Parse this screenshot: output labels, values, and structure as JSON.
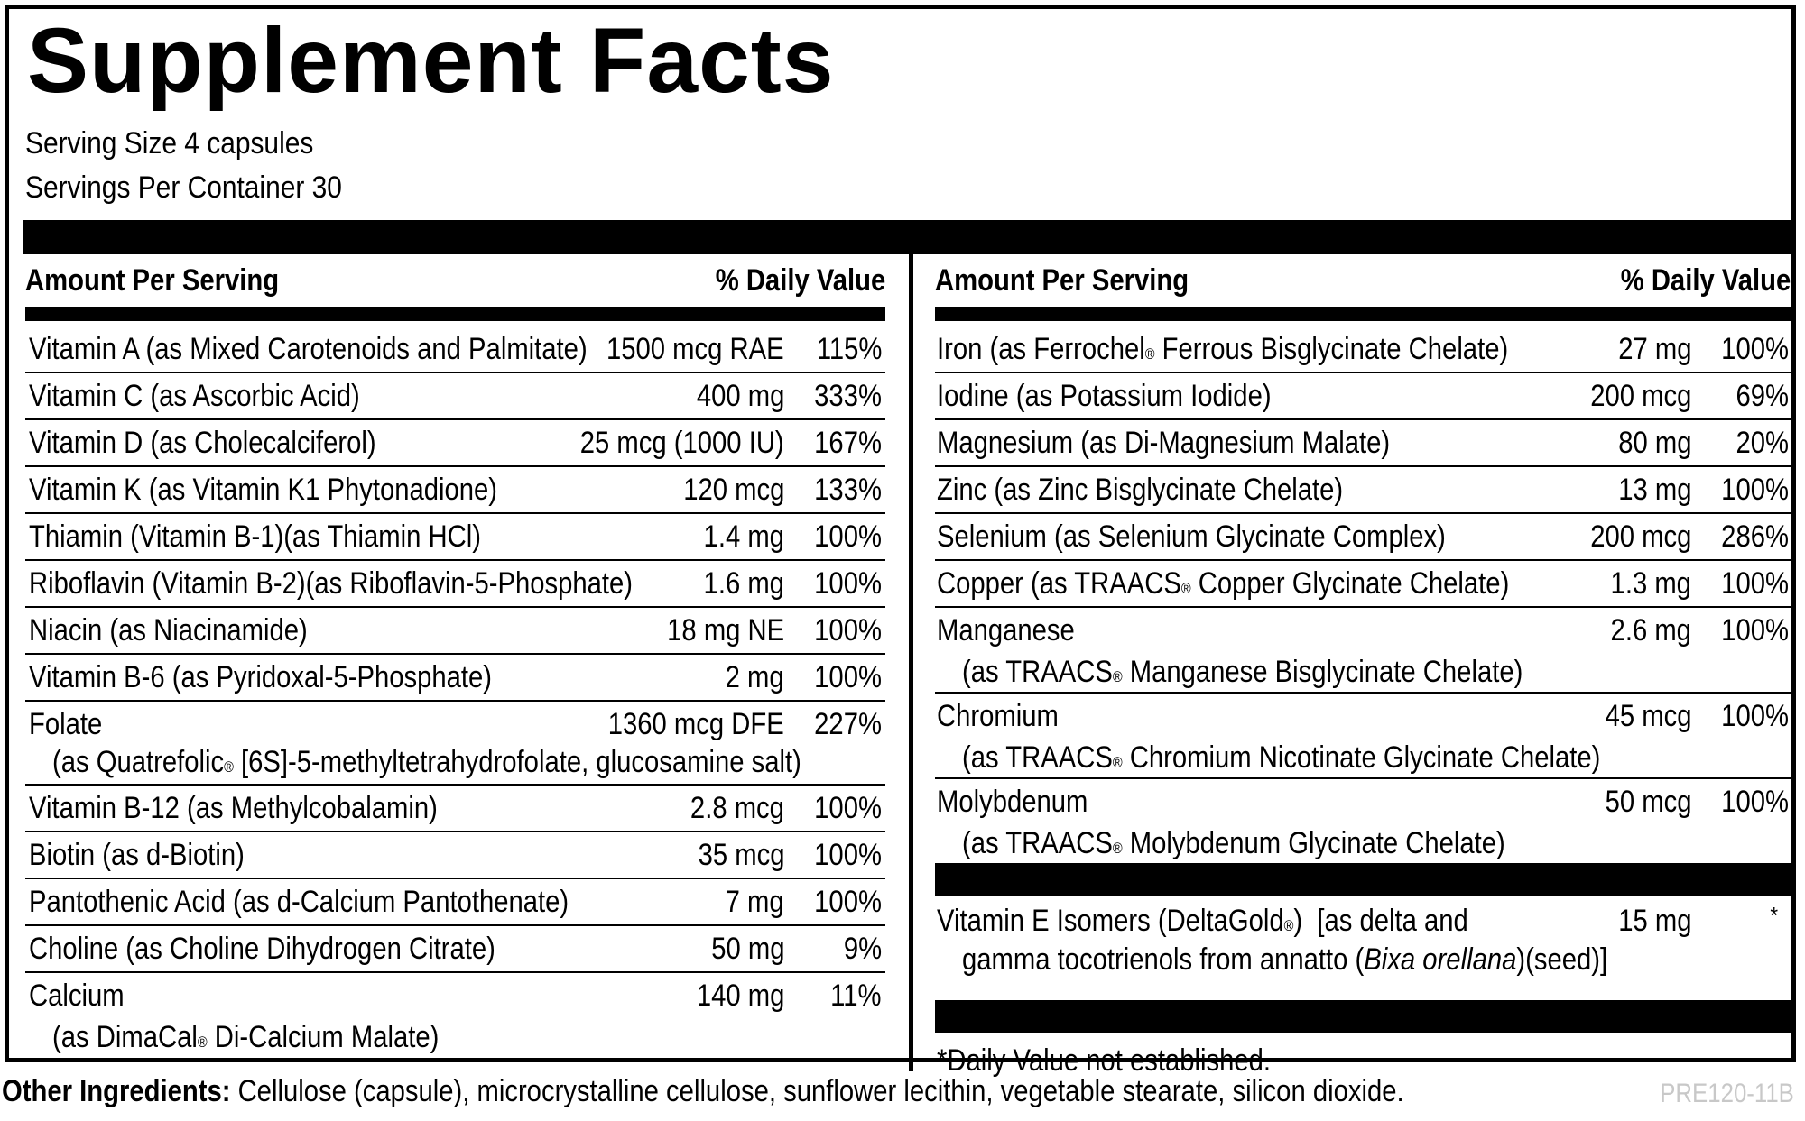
{
  "title": "Supplement Facts",
  "serving_size": "Serving Size 4 capsules",
  "servings_per_container": "Servings Per Container 30",
  "column_headers": {
    "amount": "Amount Per Serving",
    "daily_value": "% Daily Value"
  },
  "left_nutrients": [
    {
      "name": "Vitamin A (as Mixed Carotenoids and Palmitate)",
      "amount": "1500 mcg RAE",
      "dv": "115%"
    },
    {
      "name": "Vitamin C (as Ascorbic Acid)",
      "amount": "400 mg",
      "dv": "333%"
    },
    {
      "name": "Vitamin D (as Cholecalciferol)",
      "amount": "25 mcg (1000 IU)",
      "dv": "167%"
    },
    {
      "name": "Vitamin K (as Vitamin K1 Phytonadione)",
      "amount": "120 mcg",
      "dv": "133%"
    },
    {
      "name": "Thiamin (Vitamin B-1)(as Thiamin HCl)",
      "amount": "1.4 mg",
      "dv": "100%"
    },
    {
      "name": "Riboflavin (Vitamin B-2)(as Riboflavin-5-Phosphate)",
      "amount": "1.6 mg",
      "dv": "100%"
    },
    {
      "name": "Niacin (as Niacinamide)",
      "amount": "18 mg NE",
      "dv": "100%"
    },
    {
      "name": "Vitamin B-6 (as Pyridoxal-5-Phosphate)",
      "amount": "2 mg",
      "dv": "100%"
    },
    {
      "name": "Folate",
      "sub_pre": "(as Quatrefolic",
      "sub_mark": "®",
      "sub_post": " [6S]-5-methyltetrahydrofolate, glucosamine salt)",
      "amount": "1360 mcg DFE",
      "dv": "227%"
    },
    {
      "name": "Vitamin B-12 (as Methylcobalamin)",
      "amount": "2.8 mcg",
      "dv": "100%"
    },
    {
      "name": "Biotin (as d-Biotin)",
      "amount": "35 mcg",
      "dv": "100%"
    },
    {
      "name": "Pantothenic Acid (as d-Calcium Pantothenate)",
      "amount": "7 mg",
      "dv": "100%"
    },
    {
      "name": "Choline (as Choline Dihydrogen Citrate)",
      "amount": "50 mg",
      "dv": "9%"
    },
    {
      "name": "Calcium",
      "sub_pre": "(as DimaCal",
      "sub_mark": "®",
      "sub_post": " Di-Calcium Malate)",
      "amount": "140 mg",
      "dv": "11%"
    }
  ],
  "right_nutrients": [
    {
      "name_pre": "Iron (as Ferrochel",
      "name_mark": "®",
      "name_post": " Ferrous Bisglycinate Chelate)",
      "amount": "27 mg",
      "dv": "100%"
    },
    {
      "name": "Iodine (as Potassium Iodide)",
      "amount": "200 mcg",
      "dv": "69%"
    },
    {
      "name": "Magnesium (as Di-Magnesium Malate)",
      "amount": "80 mg",
      "dv": "20%"
    },
    {
      "name": "Zinc (as Zinc Bisglycinate Chelate)",
      "amount": "13 mg",
      "dv": "100%"
    },
    {
      "name": "Selenium (as Selenium Glycinate Complex)",
      "amount": "200 mcg",
      "dv": "286%"
    },
    {
      "name_pre": "Copper (as TRAACS",
      "name_mark": "®",
      "name_post": " Copper Glycinate Chelate)",
      "amount": "1.3 mg",
      "dv": "100%"
    },
    {
      "name": "Manganese",
      "sub_pre": "(as TRAACS",
      "sub_mark": "®",
      "sub_post": " Manganese Bisglycinate Chelate)",
      "amount": "2.6 mg",
      "dv": "100%"
    },
    {
      "name": "Chromium",
      "sub_pre": "(as TRAACS",
      "sub_mark": "®",
      "sub_post": " Chromium Nicotinate Glycinate Chelate)",
      "amount": "45 mcg",
      "dv": "100%"
    },
    {
      "name": "Molybdenum",
      "sub_pre": "(as TRAACS",
      "sub_mark": "®",
      "sub_post": " Molybdenum Glycinate Chelate)",
      "amount": "50 mcg",
      "dv": "100%"
    }
  ],
  "vitamin_e": {
    "name_pre": "Vitamin E Isomers (DeltaGold",
    "name_mark": "®",
    "name_post": ")  [as delta and",
    "sub_pre": "gamma tocotrienols from annatto (",
    "sub_italic": "Bixa orellana",
    "sub_post": ")(seed)]",
    "amount": "15 mg",
    "dv": "*"
  },
  "footnote": "*Daily Value not established.",
  "other_ingredients": {
    "label": "Other Ingredients:",
    "text": " Cellulose (capsule), microcrystalline cellulose, sunflower lecithin, vegetable stearate, silicon dioxide."
  },
  "product_code": "PRE120-11B"
}
